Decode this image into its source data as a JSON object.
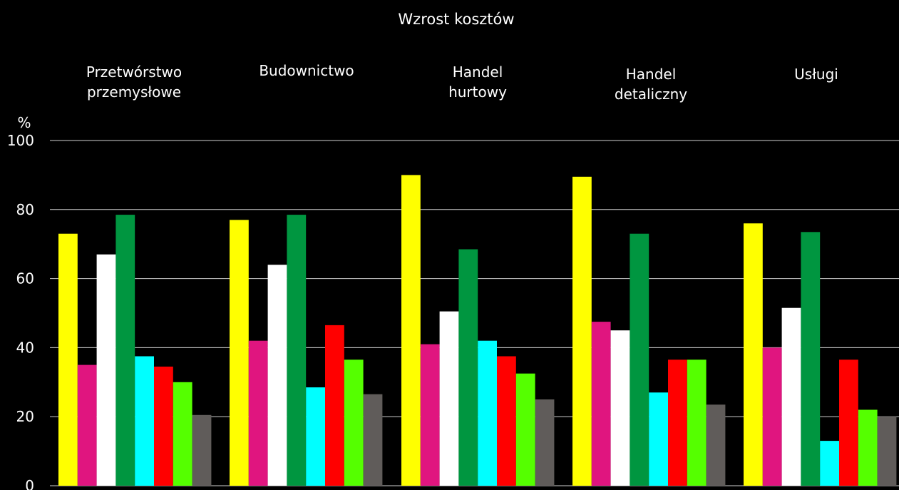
{
  "chart_data": {
    "type": "bar",
    "title": "Wzrost kosztów",
    "ylabel": "%",
    "ylim": [
      0,
      100
    ],
    "yticks": [
      0,
      20,
      40,
      60,
      80,
      100
    ],
    "grid": true,
    "categories": [
      [
        "Przetwórstwo",
        "przemysłowe"
      ],
      [
        "Budownictwo"
      ],
      [
        "Handel",
        "hurtowy"
      ],
      [
        "Handel",
        "detaliczny"
      ],
      [
        "Usługi"
      ]
    ],
    "series": [
      {
        "color": "#ffff00",
        "values": [
          73,
          77,
          90,
          89.5,
          76
        ]
      },
      {
        "color": "#e0157f",
        "values": [
          35,
          42,
          41,
          47.5,
          40
        ]
      },
      {
        "color": "#ffffff",
        "values": [
          67,
          64,
          50.5,
          45,
          51.5
        ]
      },
      {
        "color": "#009640",
        "values": [
          78.5,
          78.5,
          68.5,
          73,
          73.5
        ]
      },
      {
        "color": "#00ffff",
        "values": [
          37.5,
          28.5,
          42,
          27,
          13
        ]
      },
      {
        "color": "#ff0000",
        "values": [
          34.5,
          46.5,
          37.5,
          36.5,
          36.5
        ]
      },
      {
        "color": "#55ff00",
        "values": [
          30,
          36.5,
          32.5,
          36.5,
          22
        ]
      },
      {
        "color": "#605c5a",
        "values": [
          20.5,
          26.5,
          25,
          23.5,
          20
        ]
      }
    ]
  }
}
